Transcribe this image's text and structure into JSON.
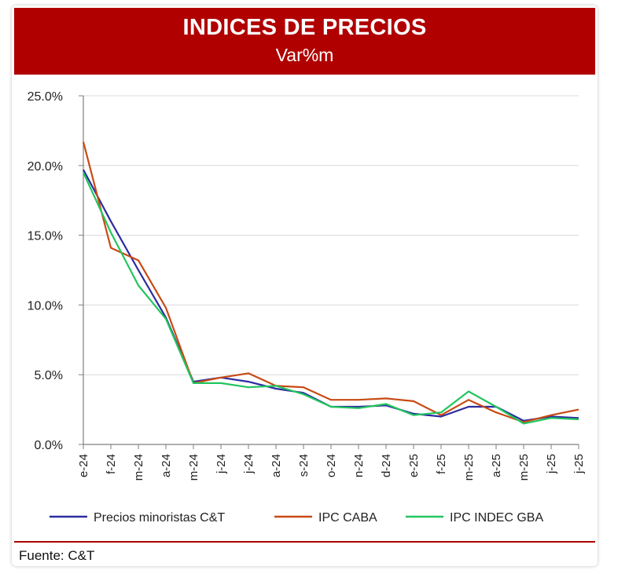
{
  "header": {
    "title": "INDICES DE PRECIOS",
    "subtitle": "Var%m"
  },
  "footer": {
    "source": "Fuente: C&T"
  },
  "colors": {
    "banner": "#b00000",
    "grid": "#d9d9d9",
    "axis": "#7f7f7f"
  },
  "chart_data": {
    "type": "line",
    "title": "INDICES DE PRECIOS",
    "subtitle": "Var%m",
    "xlabel": "",
    "ylabel": "",
    "categories": [
      "e-24",
      "f-24",
      "m-24",
      "a-24",
      "m-24",
      "j-24",
      "j-24",
      "a-24",
      "s-24",
      "o-24",
      "n-24",
      "d-24",
      "e-25",
      "f-25",
      "m-25",
      "a-25",
      "m-25",
      "j-25",
      "j-25"
    ],
    "ylim": [
      0,
      25
    ],
    "yticks": [
      0,
      5,
      10,
      15,
      20,
      25
    ],
    "ytick_labels": [
      "0.0%",
      "5.0%",
      "10.0%",
      "15.0%",
      "20.0%",
      "25.0%"
    ],
    "grid": true,
    "legend_position": "bottom",
    "series": [
      {
        "name": "Precios minoristas C&T",
        "color": "#2b2ca0",
        "values": [
          19.7,
          16.0,
          12.5,
          9.1,
          4.5,
          4.8,
          4.5,
          4.0,
          3.7,
          2.7,
          2.7,
          2.8,
          2.2,
          2.0,
          2.7,
          2.7,
          1.7,
          2.0,
          1.9
        ]
      },
      {
        "name": "IPC CABA",
        "color": "#c84a14",
        "values": [
          21.7,
          14.1,
          13.2,
          9.8,
          4.4,
          4.8,
          5.1,
          4.2,
          4.1,
          3.2,
          3.2,
          3.3,
          3.1,
          2.1,
          3.2,
          2.3,
          1.6,
          2.1,
          2.5
        ]
      },
      {
        "name": "IPC INDEC GBA",
        "color": "#22c55e",
        "values": [
          19.5,
          15.2,
          11.4,
          9.0,
          4.4,
          4.4,
          4.1,
          4.2,
          3.6,
          2.7,
          2.6,
          2.9,
          2.1,
          2.3,
          3.8,
          2.7,
          1.5,
          1.9,
          1.8
        ]
      }
    ]
  }
}
